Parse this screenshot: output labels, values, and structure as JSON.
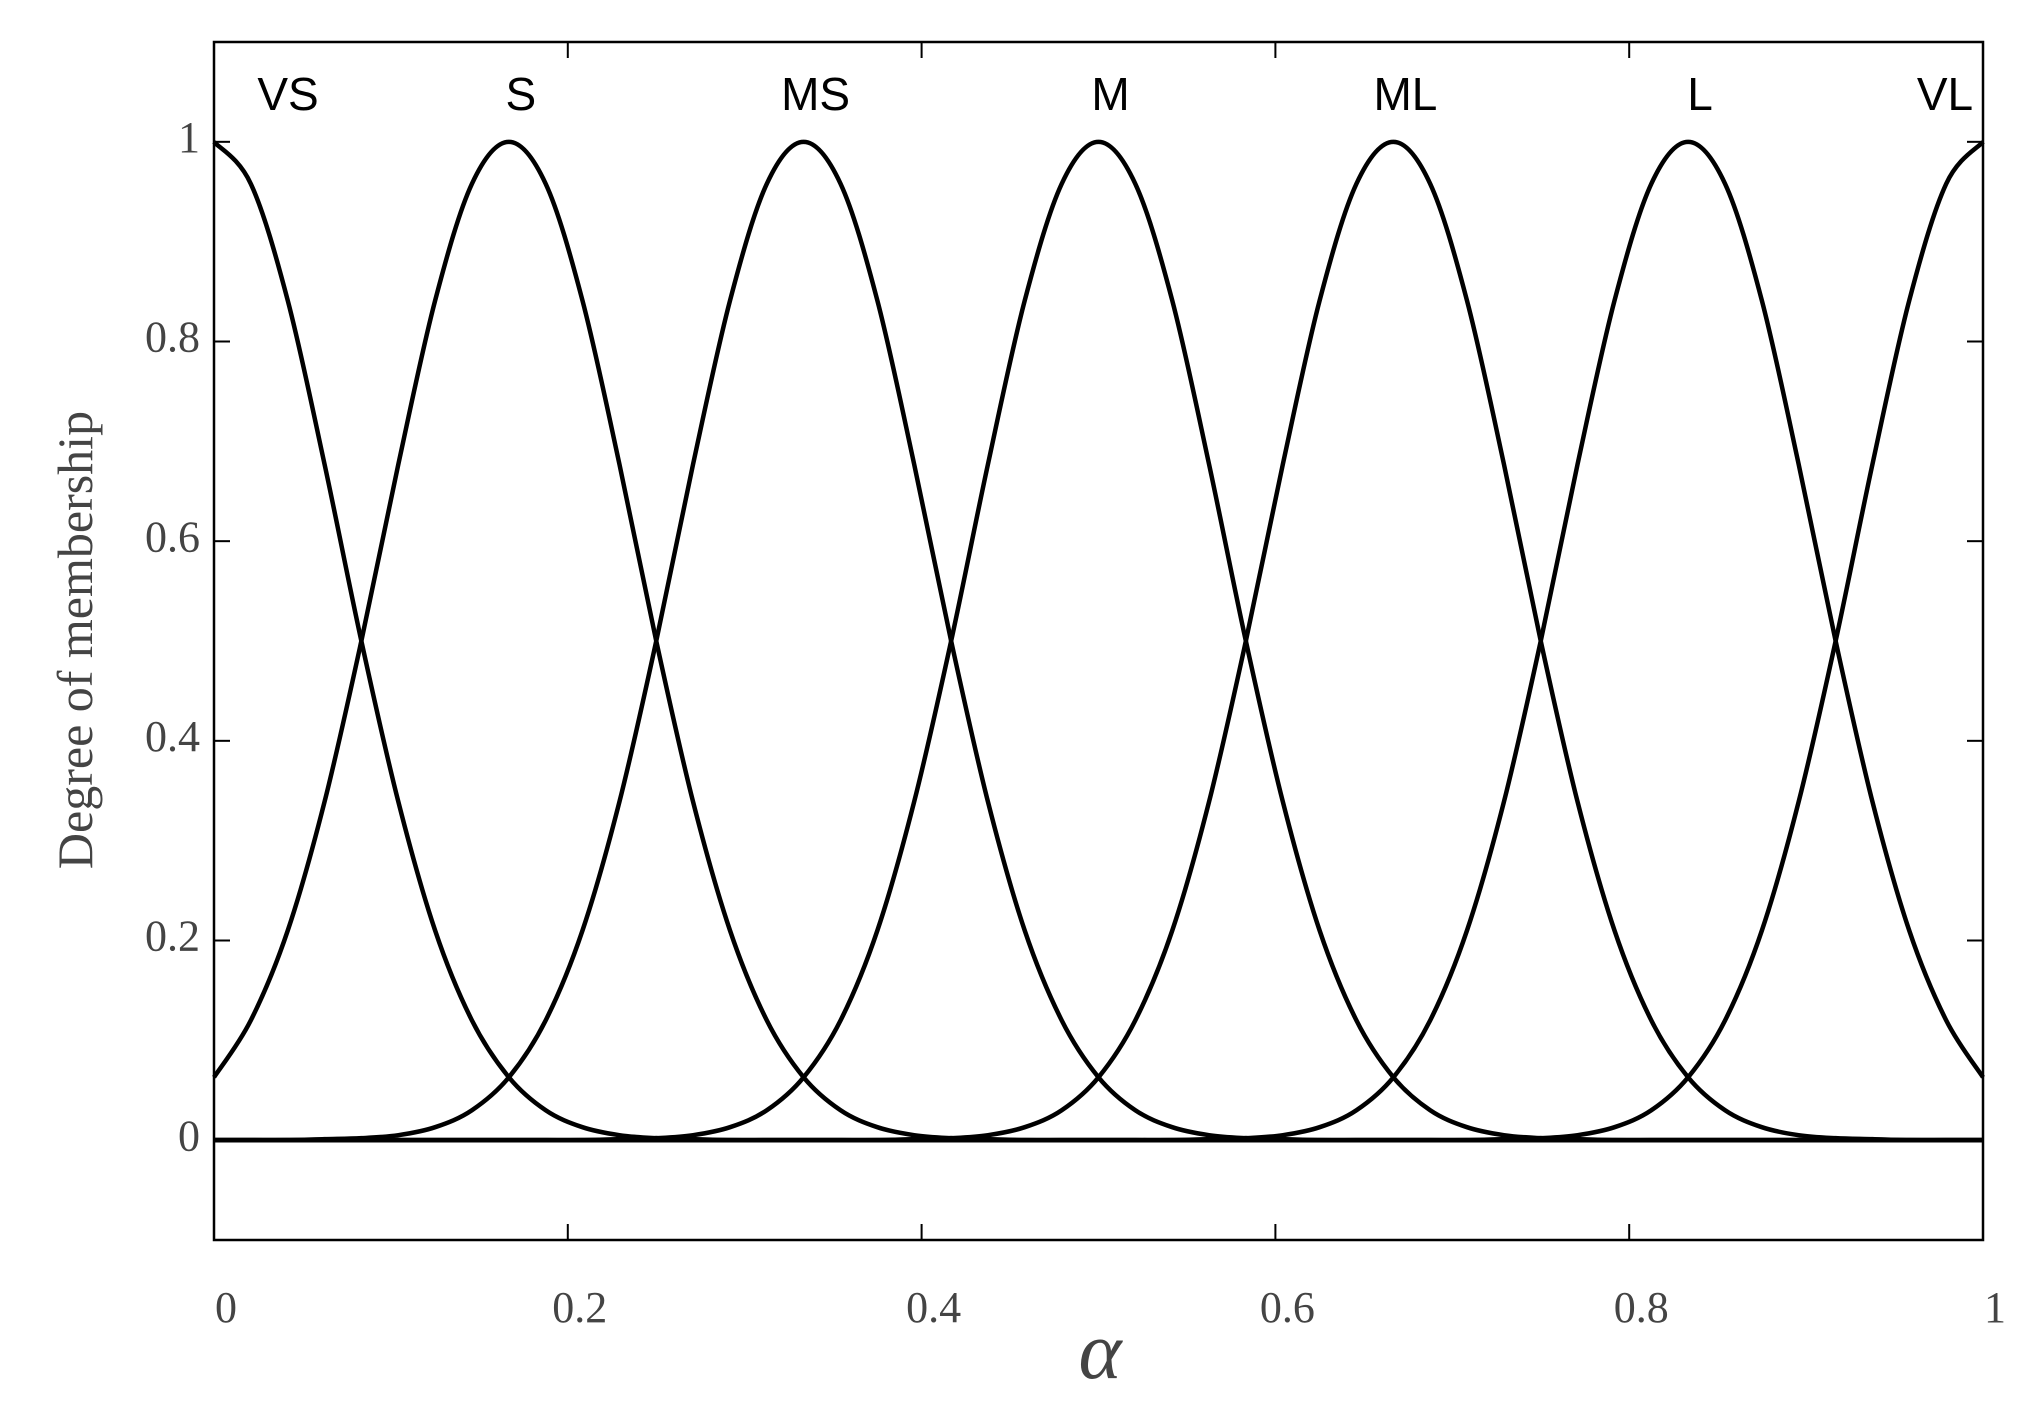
{
  "chart_data": {
    "type": "line",
    "xlabel": "α",
    "ylabel": "Degree of membership",
    "xlim": [
      0,
      1
    ],
    "ylim": [
      -0.1,
      1.1
    ],
    "xticks": [
      0,
      0.2,
      0.4,
      0.6,
      0.8,
      1
    ],
    "yticks": [
      0,
      0.2,
      0.4,
      0.6,
      0.8,
      1
    ],
    "x": [
      0,
      0.0208,
      0.0417,
      0.0625,
      0.0833,
      0.1042,
      0.125,
      0.1458,
      0.1667,
      0.1875,
      0.2083,
      0.2292,
      0.25,
      0.2708,
      0.2917,
      0.3125,
      0.3333,
      0.3542,
      0.375,
      0.3958,
      0.4167,
      0.4375,
      0.4583,
      0.4792,
      0.5,
      0.5208,
      0.5417,
      0.5625,
      0.5833,
      0.6042,
      0.625,
      0.6458,
      0.6667,
      0.6875,
      0.7083,
      0.7292,
      0.75,
      0.7708,
      0.7917,
      0.8125,
      0.8333,
      0.8542,
      0.875,
      0.8958,
      0.9167,
      0.9375,
      0.9583,
      0.9792,
      1
    ],
    "series": [
      {
        "name": "VS",
        "color": "#000000",
        "values": [
          1,
          0.958,
          0.841,
          0.677,
          0.5,
          0.339,
          0.21,
          0.12,
          0.063,
          0.03,
          0.013,
          0.005,
          0.002,
          0.001,
          0,
          0,
          0,
          0,
          0,
          0,
          0,
          0,
          0,
          0,
          0,
          0,
          0,
          0,
          0,
          0,
          0,
          0,
          0,
          0,
          0,
          0,
          0,
          0,
          0,
          0,
          0,
          0,
          0,
          0,
          0,
          0,
          0,
          0,
          0
        ]
      },
      {
        "name": "S",
        "color": "#000000",
        "values": [
          0.063,
          0.12,
          0.21,
          0.339,
          0.5,
          0.677,
          0.841,
          0.958,
          1,
          0.958,
          0.841,
          0.677,
          0.5,
          0.339,
          0.21,
          0.12,
          0.063,
          0.03,
          0.013,
          0.005,
          0.002,
          0.001,
          0,
          0,
          0,
          0,
          0,
          0,
          0,
          0,
          0,
          0,
          0,
          0,
          0,
          0,
          0,
          0,
          0,
          0,
          0,
          0,
          0,
          0,
          0,
          0,
          0,
          0,
          0
        ]
      },
      {
        "name": "MS",
        "color": "#000000",
        "values": [
          0,
          0,
          0,
          0.001,
          0.002,
          0.005,
          0.013,
          0.03,
          0.063,
          0.12,
          0.21,
          0.339,
          0.5,
          0.677,
          0.841,
          0.958,
          1,
          0.958,
          0.841,
          0.677,
          0.5,
          0.339,
          0.21,
          0.12,
          0.063,
          0.03,
          0.013,
          0.005,
          0.002,
          0.001,
          0,
          0,
          0,
          0,
          0,
          0,
          0,
          0,
          0,
          0,
          0,
          0,
          0,
          0,
          0,
          0,
          0,
          0,
          0
        ]
      },
      {
        "name": "M",
        "color": "#000000",
        "values": [
          0,
          0,
          0,
          0,
          0,
          0,
          0,
          0,
          0,
          0,
          0,
          0.001,
          0.002,
          0.005,
          0.013,
          0.03,
          0.063,
          0.12,
          0.21,
          0.339,
          0.5,
          0.677,
          0.841,
          0.958,
          1,
          0.958,
          0.841,
          0.677,
          0.5,
          0.339,
          0.21,
          0.12,
          0.063,
          0.03,
          0.013,
          0.005,
          0.002,
          0.001,
          0,
          0,
          0,
          0,
          0,
          0,
          0,
          0,
          0,
          0,
          0
        ]
      },
      {
        "name": "ML",
        "color": "#000000",
        "values": [
          0,
          0,
          0,
          0,
          0,
          0,
          0,
          0,
          0,
          0,
          0,
          0,
          0,
          0,
          0,
          0,
          0,
          0,
          0,
          0.001,
          0.002,
          0.005,
          0.013,
          0.03,
          0.063,
          0.12,
          0.21,
          0.339,
          0.5,
          0.677,
          0.841,
          0.958,
          1,
          0.958,
          0.841,
          0.677,
          0.5,
          0.339,
          0.21,
          0.12,
          0.063,
          0.03,
          0.013,
          0.005,
          0.002,
          0.001,
          0,
          0,
          0
        ]
      },
      {
        "name": "L",
        "color": "#000000",
        "values": [
          0,
          0,
          0,
          0,
          0,
          0,
          0,
          0,
          0,
          0,
          0,
          0,
          0,
          0,
          0,
          0,
          0,
          0,
          0,
          0,
          0,
          0,
          0,
          0,
          0,
          0,
          0,
          0.001,
          0.002,
          0.005,
          0.013,
          0.03,
          0.063,
          0.12,
          0.21,
          0.339,
          0.5,
          0.677,
          0.841,
          0.958,
          1,
          0.958,
          0.841,
          0.677,
          0.5,
          0.339,
          0.21,
          0.12,
          0.063
        ]
      },
      {
        "name": "VL",
        "color": "#000000",
        "values": [
          0,
          0,
          0,
          0,
          0,
          0,
          0,
          0,
          0,
          0,
          0,
          0,
          0,
          0,
          0,
          0,
          0,
          0,
          0,
          0,
          0,
          0,
          0,
          0,
          0,
          0,
          0,
          0,
          0,
          0,
          0,
          0,
          0,
          0,
          0,
          0.001,
          0.002,
          0.005,
          0.013,
          0.03,
          0.063,
          0.12,
          0.21,
          0.339,
          0.5,
          0.677,
          0.841,
          0.958,
          1
        ]
      }
    ]
  }
}
